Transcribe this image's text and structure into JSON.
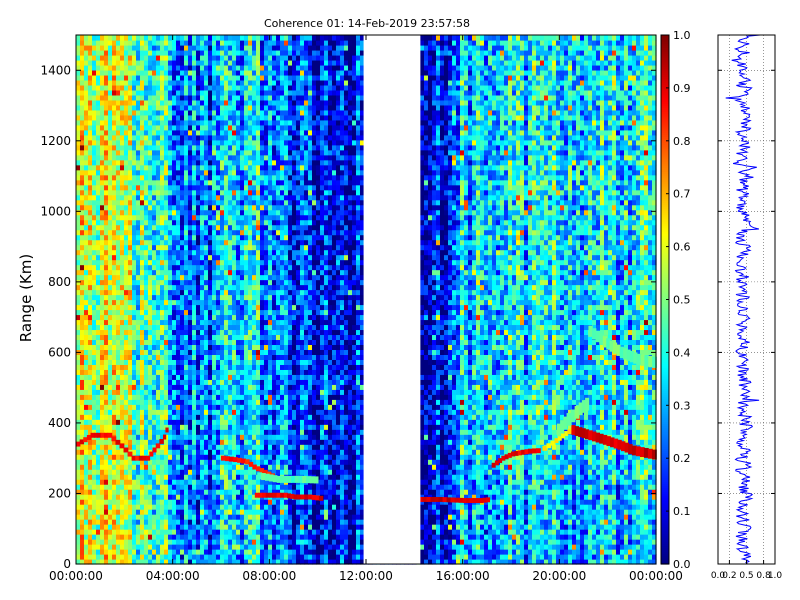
{
  "chart_data": [
    {
      "type": "heatmap",
      "title": "Coherence 01: 14-Feb-2019 23:57:58",
      "ylabel": "Range (Km)",
      "xlabel": "",
      "x_ticks": [
        "00:00:00",
        "04:00:00",
        "08:00:00",
        "12:00:00",
        "16:00:00",
        "20:00:00",
        "00:00:00"
      ],
      "x_tick_hours": [
        0,
        4,
        8,
        12,
        16,
        20,
        24
      ],
      "xlim_hours": [
        0,
        24
      ],
      "y_ticks": [
        0,
        200,
        400,
        600,
        800,
        1000,
        1200,
        1400
      ],
      "ylim": [
        0,
        1500
      ],
      "value_range": [
        0.0,
        1.0
      ],
      "colormap": "jet",
      "data_gap_hours": [
        11.9,
        14.25
      ],
      "features": [
        {
          "kind": "trace",
          "points_hours_km": [
            [
              0.0,
              340
            ],
            [
              0.6,
              365
            ],
            [
              1.3,
              365
            ],
            [
              1.8,
              335
            ],
            [
              2.3,
              300
            ],
            [
              2.9,
              300
            ],
            [
              3.3,
              335
            ],
            [
              3.6,
              360
            ],
            [
              3.8,
              400
            ]
          ],
          "value": 0.88
        },
        {
          "kind": "trace",
          "points_hours_km": [
            [
              6.0,
              300
            ],
            [
              6.5,
              296
            ],
            [
              7.0,
              290
            ],
            [
              7.3,
              275
            ],
            [
              7.6,
              265
            ],
            [
              7.9,
              255
            ],
            [
              8.2,
              245
            ]
          ],
          "value": 0.85
        },
        {
          "kind": "trace",
          "points_hours_km": [
            [
              7.4,
              195
            ],
            [
              8.0,
              195
            ],
            [
              8.6,
              195
            ],
            [
              9.0,
              190
            ],
            [
              9.6,
              190
            ],
            [
              10.2,
              185
            ]
          ],
          "value": 0.9
        },
        {
          "kind": "trace",
          "points_hours_km": [
            [
              14.0,
              183
            ],
            [
              15.0,
              183
            ],
            [
              16.0,
              180
            ],
            [
              16.7,
              180
            ],
            [
              17.1,
              183
            ]
          ],
          "value": 0.92
        },
        {
          "kind": "trace",
          "points_hours_km": [
            [
              17.2,
              280
            ],
            [
              17.6,
              300
            ],
            [
              18.0,
              312
            ],
            [
              18.7,
              320
            ],
            [
              19.2,
              322
            ]
          ],
          "value": 0.9
        },
        {
          "kind": "trace",
          "points_hours_km": [
            [
              19.3,
              328
            ],
            [
              19.8,
              350
            ],
            [
              20.2,
              370
            ],
            [
              20.6,
              385
            ]
          ],
          "value": 0.65
        },
        {
          "kind": "band",
          "points_hours_km": [
            [
              20.5,
              380
            ],
            [
              21.2,
              365
            ],
            [
              21.8,
              352
            ],
            [
              22.4,
              338
            ],
            [
              23.0,
              322
            ],
            [
              23.5,
              315
            ],
            [
              24.0,
              308
            ]
          ],
          "value": 0.92,
          "halfwidth_km": 14
        },
        {
          "kind": "band",
          "points_hours_km": [
            [
              19.9,
              380
            ],
            [
              20.3,
              410
            ],
            [
              20.8,
              440
            ],
            [
              21.2,
              460
            ]
          ],
          "value": 0.5,
          "halfwidth_km": 18
        },
        {
          "kind": "band",
          "points_hours_km": [
            [
              21.2,
              660
            ],
            [
              21.8,
              630
            ],
            [
              22.5,
              600
            ],
            [
              23.2,
              580
            ],
            [
              24.0,
              570
            ]
          ],
          "value": 0.48,
          "halfwidth_km": 16
        },
        {
          "kind": "band",
          "points_hours_km": [
            [
              7.5,
              250
            ],
            [
              8.3,
              240
            ],
            [
              9.2,
              240
            ],
            [
              10.0,
              238
            ]
          ],
          "value": 0.45,
          "halfwidth_km": 10
        }
      ]
    },
    {
      "type": "colorbar",
      "range": [
        0.0,
        1.0
      ],
      "ticks": [
        "0.0",
        "0.1",
        "0.2",
        "0.3",
        "0.4",
        "0.5",
        "0.6",
        "0.7",
        "0.8",
        "0.9",
        "1.0"
      ],
      "colormap": "jet"
    },
    {
      "type": "line",
      "orientation": "vertical",
      "color": "#0000ff",
      "x_ticks": [
        "0.0",
        "0.2",
        "0.5",
        "0.8",
        "1.0"
      ],
      "x_tick_values": [
        0.0,
        0.2,
        0.5,
        0.8,
        1.0
      ],
      "xlim": [
        0.0,
        1.0
      ],
      "ylim": [
        0,
        1500
      ],
      "grid": true,
      "mean_value": 0.45,
      "spread": 0.12
    }
  ]
}
